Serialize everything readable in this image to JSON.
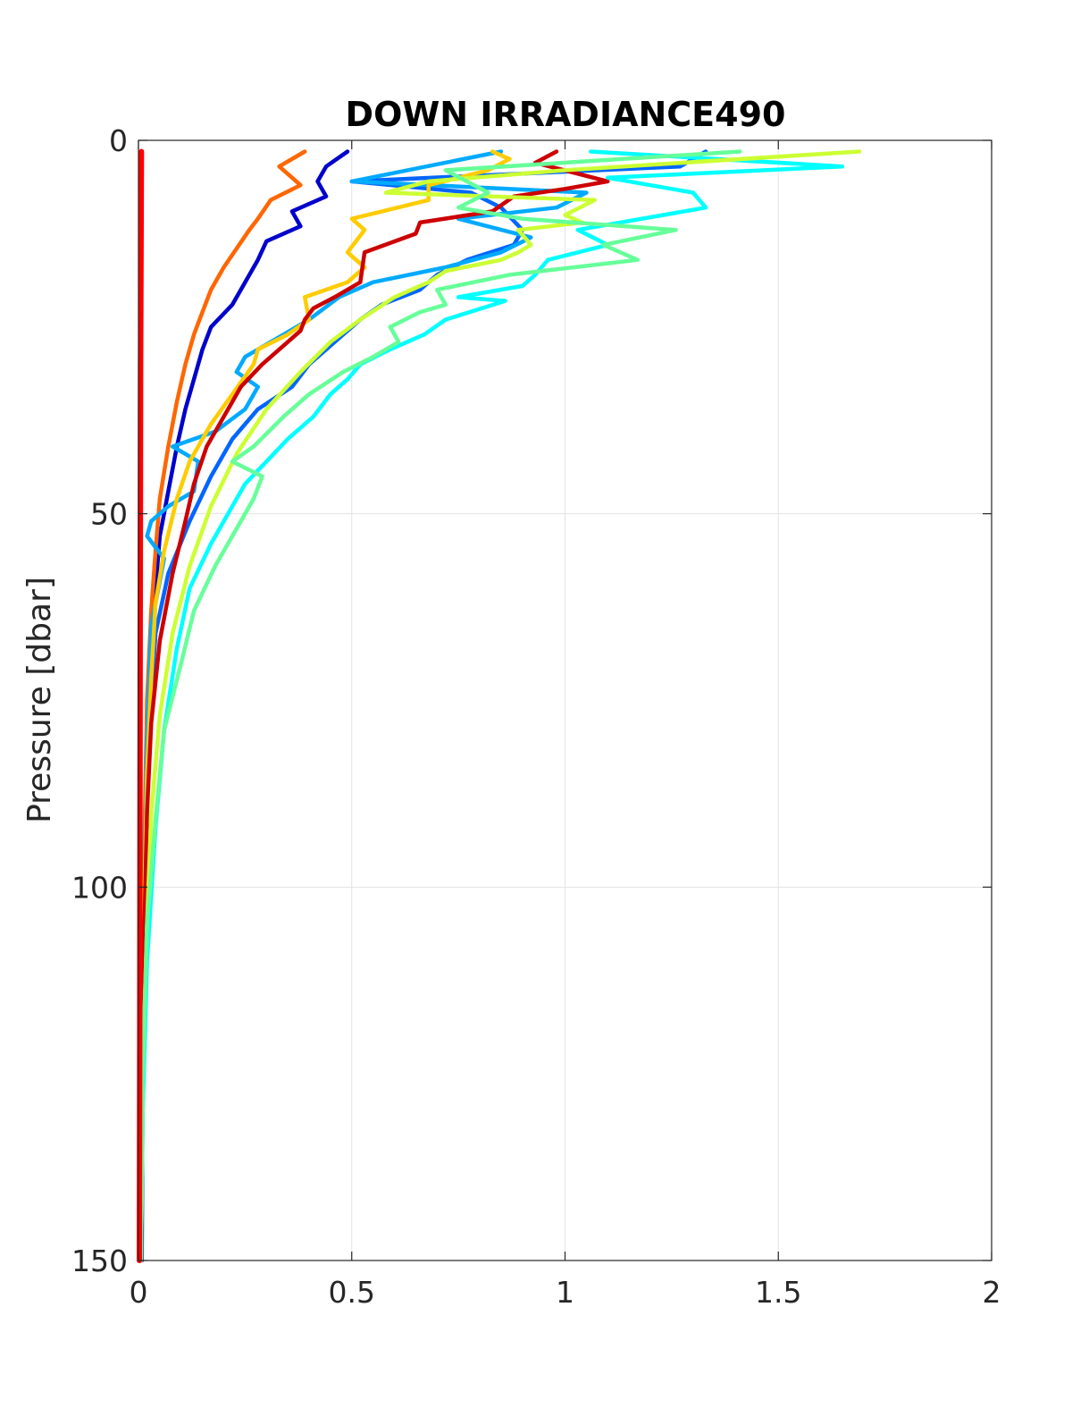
{
  "chart_data": {
    "type": "line",
    "title": "DOWN IRRADIANCE490",
    "xlabel": "",
    "ylabel": "Pressure [dbar]",
    "xlim": [
      0,
      2
    ],
    "ylim": [
      0,
      150
    ],
    "y_reversed": true,
    "grid": true,
    "x_ticks": [
      "0",
      "0.5",
      "1",
      "1.5",
      "2"
    ],
    "y_ticks": [
      "0",
      "50",
      "100",
      "150"
    ],
    "series": [
      {
        "color": "#0000cc",
        "x": [
          0.49,
          0.44,
          0.42,
          0.44,
          0.36,
          0.38,
          0.3,
          0.28,
          0.25,
          0.22,
          0.17,
          0.15,
          0.13,
          0.11,
          0.09,
          0.07,
          0.05,
          0.04,
          0.03,
          0.02,
          0.015,
          0.01,
          0.008
        ],
        "y": [
          1.5,
          3.5,
          5.5,
          7.5,
          9.5,
          11.5,
          13.5,
          16,
          19,
          22,
          25,
          28,
          32,
          36,
          41,
          47,
          53,
          60,
          70,
          80,
          95,
          120,
          150
        ]
      },
      {
        "color": "#ff6600",
        "x": [
          0.39,
          0.33,
          0.38,
          0.31,
          0.28,
          0.26,
          0.23,
          0.2,
          0.17,
          0.15,
          0.13,
          0.11,
          0.09,
          0.07,
          0.05,
          0.04,
          0.03,
          0.02,
          0.015,
          0.01,
          0.006
        ],
        "y": [
          1.5,
          3.5,
          6,
          8,
          10.5,
          12,
          14.5,
          17,
          20,
          23,
          26,
          30,
          35,
          41,
          48,
          55,
          63,
          75,
          90,
          115,
          150
        ]
      },
      {
        "color": "#0066ff",
        "x": [
          1.33,
          1.27,
          0.5,
          0.78,
          0.85,
          0.9,
          0.88,
          0.77,
          0.7,
          0.66,
          0.57,
          0.52,
          0.48,
          0.44,
          0.4,
          0.36,
          0.28,
          0.22,
          0.17,
          0.12,
          0.07,
          0.04,
          0.03,
          0.02,
          0.01,
          0.006
        ],
        "y": [
          1.5,
          3.5,
          5.5,
          7,
          9,
          12,
          14,
          16,
          18,
          20,
          22,
          24,
          26,
          28,
          30,
          33,
          36,
          40,
          45,
          51,
          58,
          66,
          75,
          88,
          110,
          150
        ]
      },
      {
        "color": "#00aaff",
        "x": [
          0.85,
          0.5,
          1.05,
          0.98,
          0.75,
          0.92,
          0.85,
          0.72,
          0.55,
          0.47,
          0.4,
          0.34,
          0.25,
          0.23,
          0.28,
          0.25,
          0.18,
          0.08,
          0.14,
          0.13,
          0.07,
          0.03,
          0.02,
          0.06,
          0.03,
          0.02,
          0.01,
          0.006
        ],
        "y": [
          1.5,
          5.5,
          7,
          9,
          10.5,
          13,
          15,
          17,
          19,
          21,
          24,
          26,
          29,
          31,
          33,
          36,
          39,
          41,
          43,
          47,
          49,
          51,
          53,
          56,
          65,
          80,
          110,
          150
        ]
      },
      {
        "color": "#ffcc00",
        "x": [
          0.83,
          0.87,
          0.82,
          0.68,
          0.68,
          0.5,
          0.53,
          0.49,
          0.53,
          0.49,
          0.39,
          0.4,
          0.35,
          0.28,
          0.27,
          0.22,
          0.17,
          0.12,
          0.09,
          0.06,
          0.04,
          0.03,
          0.02,
          0.01,
          0.006
        ],
        "y": [
          1.5,
          2.5,
          4,
          6,
          8,
          10.5,
          12,
          15,
          17,
          19,
          21,
          24,
          26,
          28,
          30,
          34,
          38,
          43,
          48,
          55,
          62,
          72,
          85,
          110,
          150
        ]
      },
      {
        "color": "#cc0000",
        "x": [
          0.98,
          0.93,
          1.1,
          1.0,
          0.88,
          0.83,
          0.66,
          0.65,
          0.53,
          0.52,
          0.46,
          0.41,
          0.39,
          0.38,
          0.29,
          0.24,
          0.21,
          0.16,
          0.13,
          0.11,
          0.08,
          0.05,
          0.03,
          0.02,
          0.01,
          0.006
        ],
        "y": [
          1.5,
          3,
          5.5,
          6.5,
          7.5,
          9.5,
          11,
          12.5,
          15,
          19,
          21,
          22.5,
          24,
          25.5,
          30,
          33,
          36,
          41,
          46,
          51,
          58,
          67,
          78,
          90,
          115,
          150
        ]
      },
      {
        "color": "#00ffff",
        "x": [
          1.06,
          1.65,
          1.1,
          1.3,
          1.33,
          1.03,
          1.1,
          0.96,
          0.93,
          0.9,
          0.75,
          0.86,
          0.72,
          0.67,
          0.59,
          0.52,
          0.49,
          0.45,
          0.41,
          0.35,
          0.3,
          0.25,
          0.22,
          0.17,
          0.12,
          0.09,
          0.06,
          0.04,
          0.02,
          0.01,
          0.006
        ],
        "y": [
          1.5,
          3.5,
          5,
          7,
          9,
          12,
          14,
          16,
          18,
          19.5,
          21,
          21.5,
          24,
          26,
          28,
          30,
          32,
          34,
          37,
          40,
          43,
          46,
          49,
          54,
          60,
          68,
          79,
          92,
          110,
          130,
          150
        ]
      },
      {
        "color": "#ccff33",
        "x": [
          1.69,
          1.0,
          0.68,
          0.58,
          1.07,
          1.0,
          1.04,
          0.89,
          0.92,
          0.89,
          0.85,
          0.72,
          0.68,
          0.6,
          0.52,
          0.45,
          0.38,
          0.3,
          0.23,
          0.17,
          0.12,
          0.08,
          0.05,
          0.03,
          0.02,
          0.01,
          0.006
        ],
        "y": [
          1.5,
          4,
          5.5,
          7,
          8,
          10,
          11,
          12,
          14,
          15,
          16,
          17.5,
          19,
          21,
          24,
          27,
          31,
          36,
          42,
          49,
          57,
          66,
          77,
          90,
          105,
          125,
          150
        ]
      },
      {
        "color": "#66ff99",
        "x": [
          1.41,
          0.72,
          0.82,
          0.75,
          0.9,
          1.26,
          1.09,
          1.17,
          0.87,
          0.7,
          0.72,
          0.66,
          0.59,
          0.61,
          0.55,
          0.48,
          0.4,
          0.34,
          0.27,
          0.22,
          0.29,
          0.27,
          0.23,
          0.18,
          0.13,
          0.1,
          0.06,
          0.04,
          0.02,
          0.01,
          0.006
        ],
        "y": [
          1.5,
          4,
          7,
          9,
          10.5,
          12,
          14,
          16,
          18,
          20,
          22,
          23,
          25,
          27,
          29,
          31,
          34,
          37,
          41,
          43,
          45,
          48,
          52,
          57,
          63,
          70,
          79,
          91,
          105,
          125,
          150
        ]
      },
      {
        "color": "#ff0000",
        "x": [
          0.007,
          0.005,
          0.004,
          0.003,
          0.002
        ],
        "y": [
          1.5,
          30,
          70,
          120,
          150
        ]
      }
    ]
  }
}
